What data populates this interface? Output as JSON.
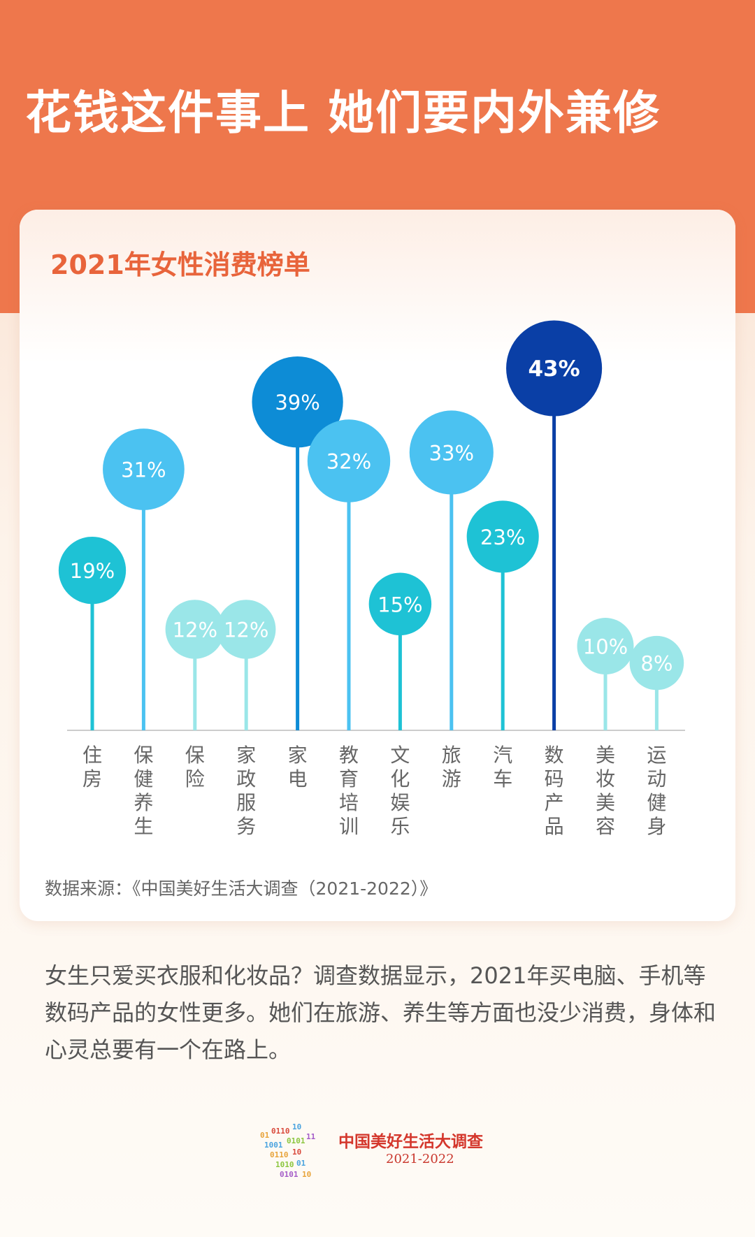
{
  "headline": "花钱这件事上  她们要内外兼修",
  "card": {
    "title": "2021年女性消费榜单",
    "source": "数据来源：《中国美好生活大调查（2021-2022）》"
  },
  "body_text": "女生只爱买衣服和化妆品？调查数据显示，2021年买电脑、手机等数码产品的女性更多。她们在旅游、养生等方面也没少消费，身体和心灵总要有一个在路上。",
  "logo": {
    "title": "中国美好生活大调查",
    "year": "2021-2022"
  },
  "colors": {
    "header_bg": "#ee774c",
    "title_accent": "#e8643b",
    "palette": [
      "#1ec2d5",
      "#4bc2f1",
      "#9ae6e8",
      "#0d8cd6",
      "#0a3fa6"
    ]
  },
  "chart_data": {
    "type": "bar",
    "title": "2021年女性消费榜单",
    "categories": [
      "住房",
      "保健养生",
      "保险",
      "家政服务",
      "家电",
      "教育培训",
      "文化娱乐",
      "旅游",
      "汽车",
      "数码产品",
      "美妆美容",
      "运动健身"
    ],
    "values": [
      19,
      31,
      12,
      12,
      39,
      32,
      15,
      33,
      23,
      43,
      10,
      8
    ],
    "value_labels": [
      "19%",
      "31%",
      "12%",
      "12%",
      "39%",
      "32%",
      "15%",
      "33%",
      "23%",
      "43%",
      "10%",
      "8%"
    ],
    "unit": "%",
    "colors": [
      "#1ec2d5",
      "#4bc2f1",
      "#9ae6e8",
      "#9ae6e8",
      "#0d8cd6",
      "#4bc2f1",
      "#1ec2d5",
      "#4bc2f1",
      "#1ec2d5",
      "#0a3fa6",
      "#9ae6e8",
      "#9ae6e8"
    ],
    "style": "lollipop",
    "grid": false,
    "legend": "none"
  }
}
